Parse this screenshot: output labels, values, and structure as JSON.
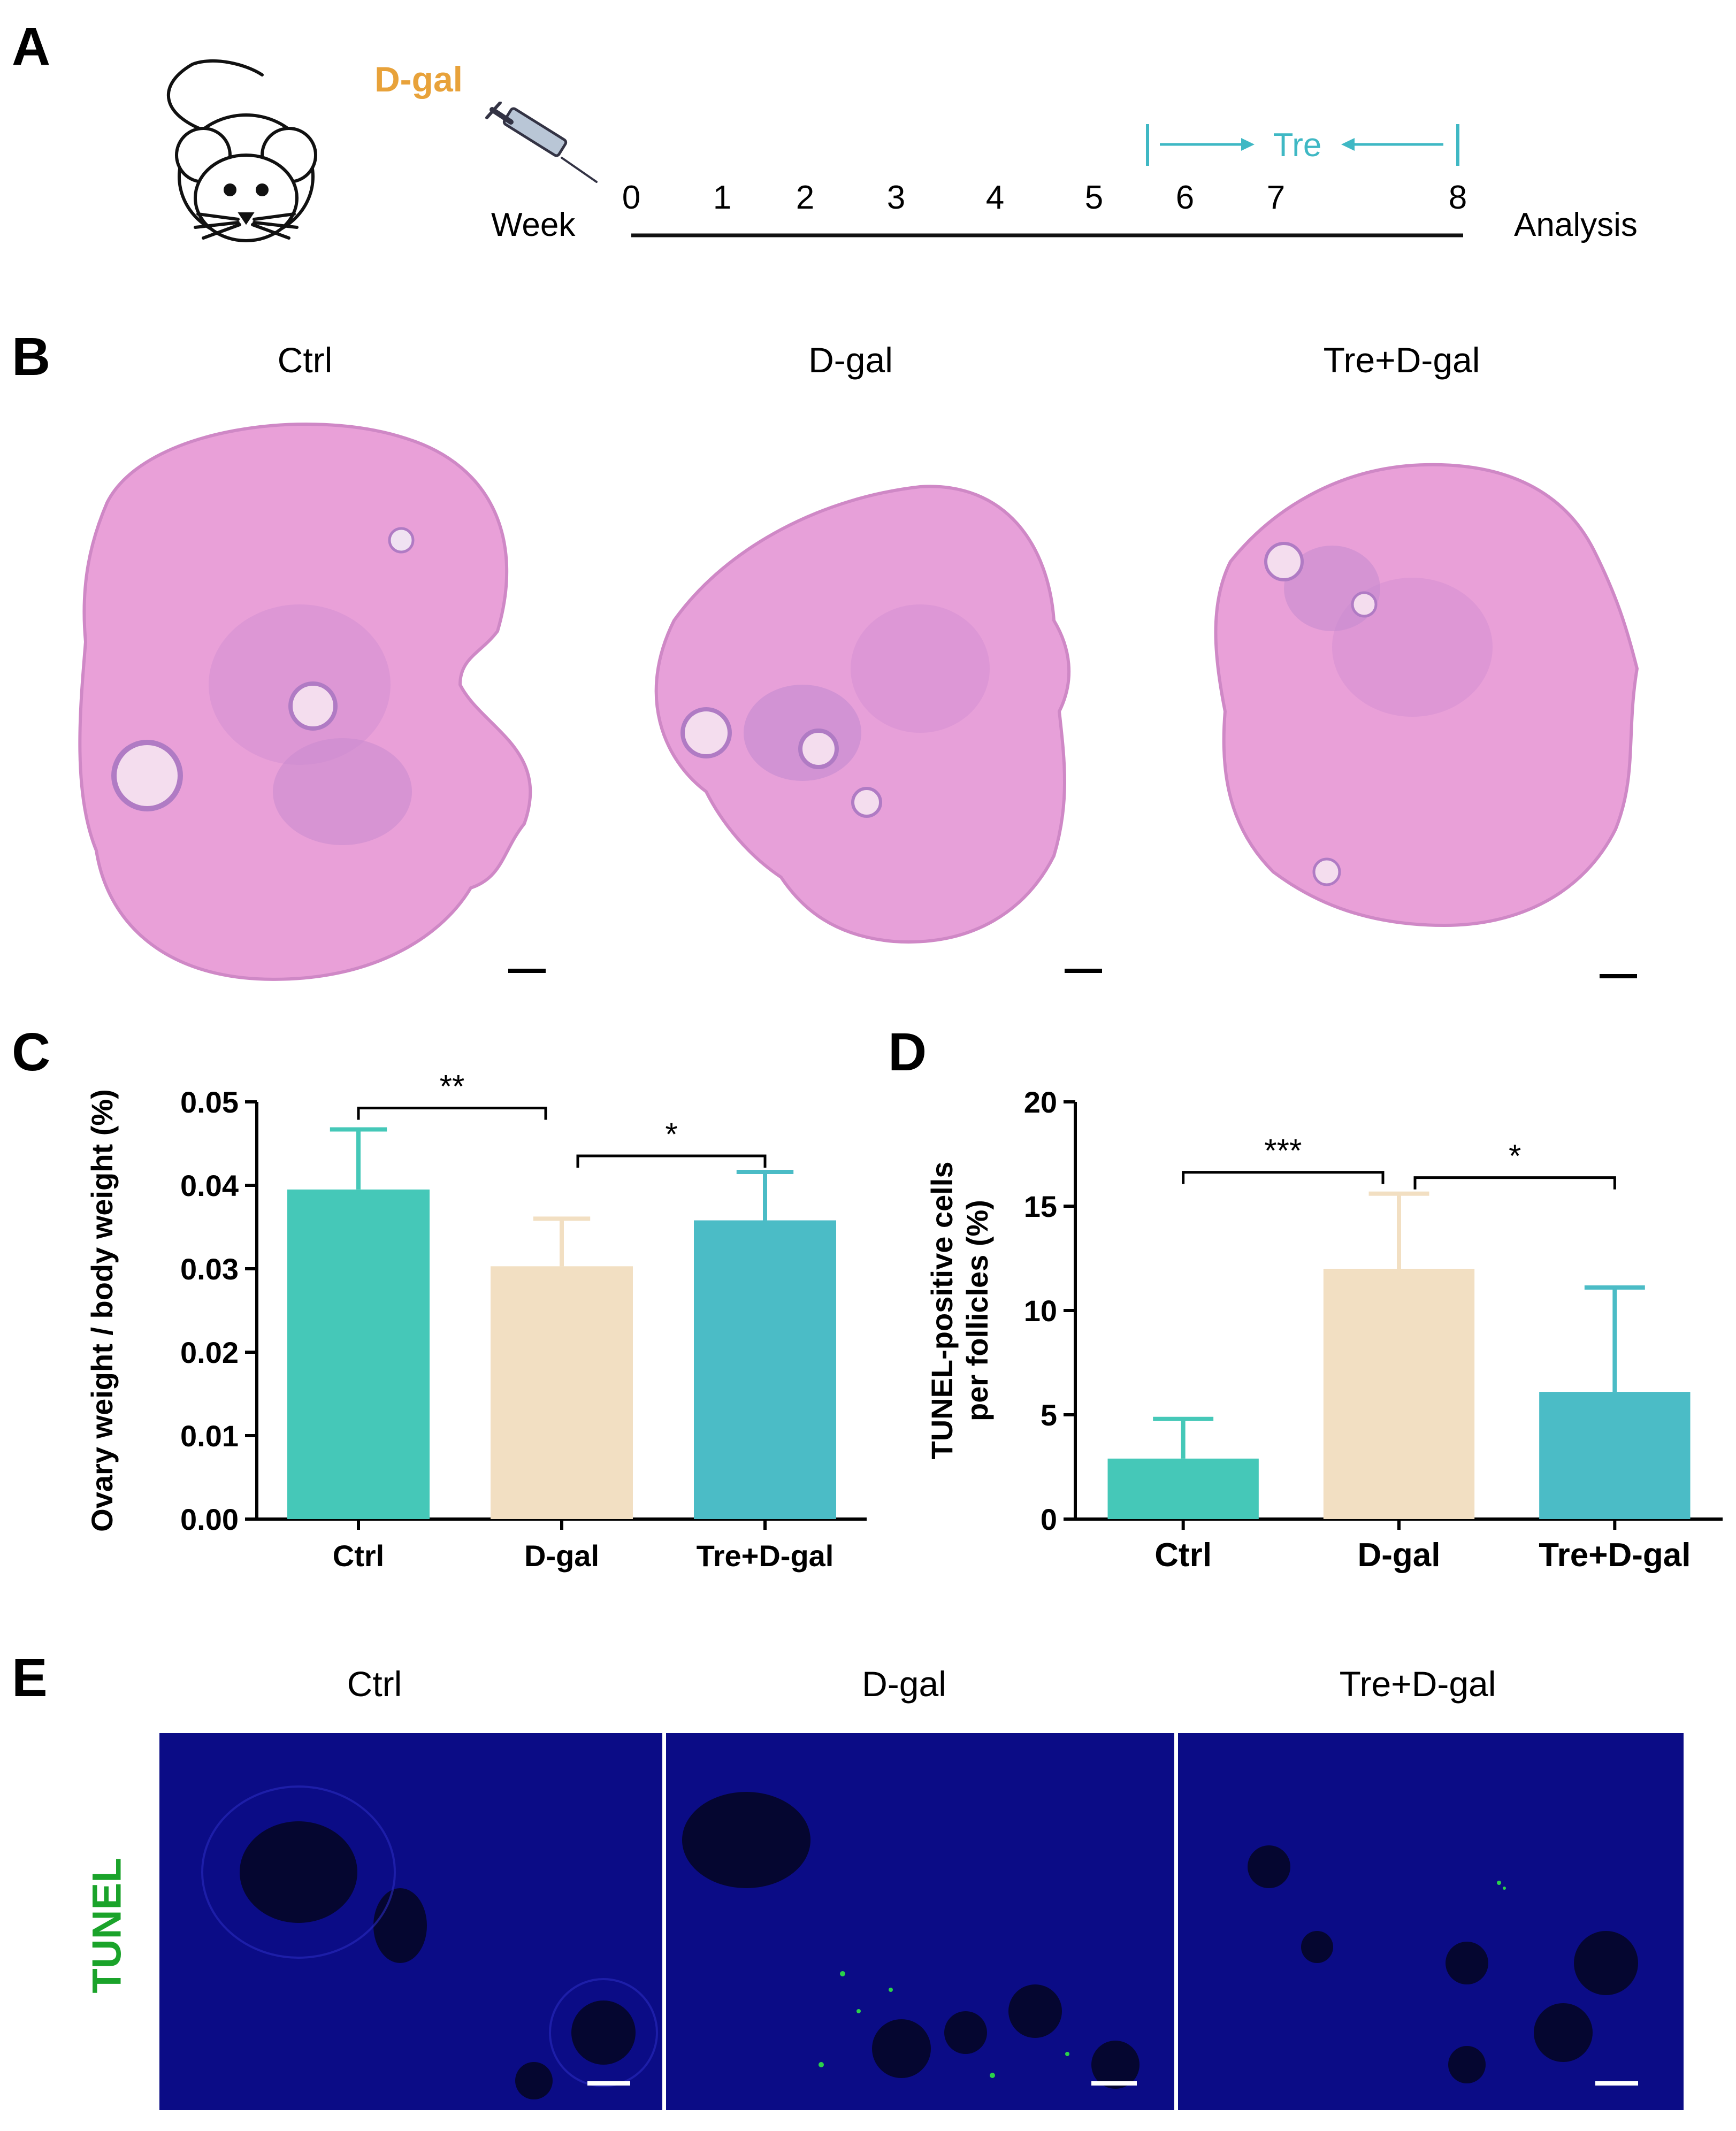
{
  "panelA": {
    "letter": "A",
    "drug_label": "D-gal",
    "week_label": "Week",
    "weeks": [
      "0",
      "1",
      "2",
      "3",
      "4",
      "5",
      "6",
      "7",
      "8"
    ],
    "treatment_label": "Tre",
    "analysis_label": "Analysis",
    "colors": {
      "drug": "#e8a23a",
      "treatment": "#3fb8c4"
    }
  },
  "panelB": {
    "letter": "B",
    "groups": [
      "Ctrl",
      "D-gal",
      "Tre+D-gal"
    ]
  },
  "panelC": {
    "letter": "C"
  },
  "panelD": {
    "letter": "D"
  },
  "panelE": {
    "letter": "E",
    "groups": [
      "Ctrl",
      "D-gal",
      "Tre+D-gal"
    ],
    "stain_label": "TUNEL",
    "colors": {
      "stain": "#1aa32a",
      "nuclei": "#0a0a8a"
    }
  },
  "chart_data": [
    {
      "type": "bar",
      "panel": "C",
      "categories": [
        "Ctrl",
        "D-gal",
        "Tre+D-gal"
      ],
      "values": [
        0.0395,
        0.0303,
        0.0358
      ],
      "errors": [
        0.0072,
        0.0057,
        0.0058
      ],
      "ylabel": "Ovary weight / body weight (%)",
      "ylim": [
        0,
        0.05
      ],
      "yticks": [
        "0.00",
        "0.01",
        "0.02",
        "0.03",
        "0.04",
        "0.05"
      ],
      "colors": [
        "#45c8b8",
        "#f2dfc2",
        "#4bbcc6"
      ],
      "significance": [
        {
          "from": 0,
          "to": 1,
          "label": "**"
        },
        {
          "from": 1,
          "to": 2,
          "label": "*"
        }
      ]
    },
    {
      "type": "bar",
      "panel": "D",
      "categories": [
        "Ctrl",
        "D-gal",
        "Tre+D-gal"
      ],
      "values": [
        2.9,
        12.0,
        6.1
      ],
      "errors": [
        1.9,
        3.6,
        5.0
      ],
      "ylabel": "TUNEL-positive cells per follicles (%)",
      "ylabel_lines": [
        "TUNEL-positive cells",
        "per follicles (%)"
      ],
      "ylim": [
        0,
        20
      ],
      "yticks": [
        "0",
        "5",
        "10",
        "15",
        "20"
      ],
      "colors": [
        "#45c8b8",
        "#f2dfc2",
        "#4bbcc6"
      ],
      "significance": [
        {
          "from": 0,
          "to": 1,
          "label": "***"
        },
        {
          "from": 1,
          "to": 2,
          "label": "*"
        }
      ]
    }
  ]
}
